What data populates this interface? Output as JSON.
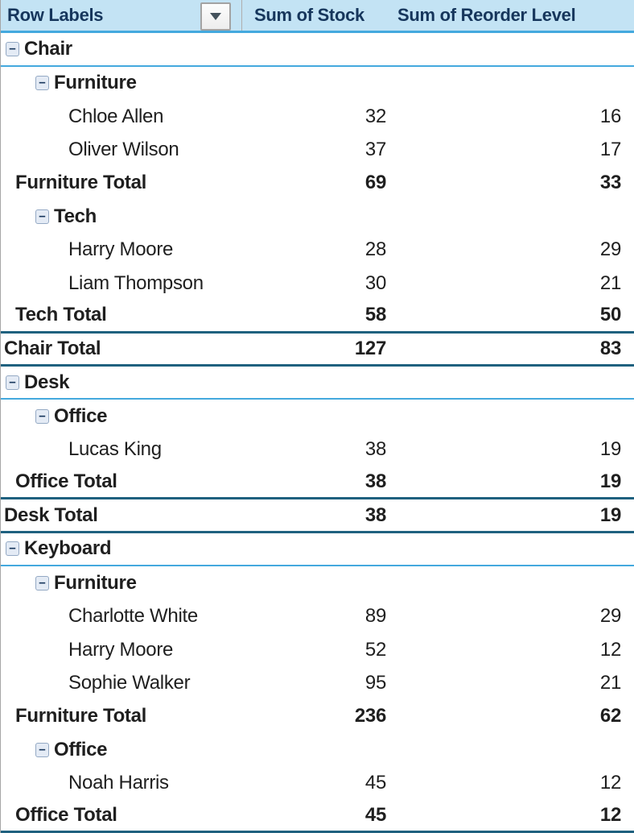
{
  "colors": {
    "header_bg": "#C3E3F4",
    "header_text": "#16365C",
    "body_text": "#1F1F1F",
    "line_sky": "#44A9DE",
    "line_dark": "#1F617F",
    "left_border": "#A6A6A6",
    "expand_box_bg": "#E4EBF5",
    "expand_box_border": "#94A9C4",
    "expand_minus": "#16365C",
    "filter_border": "#A3A3A3",
    "filter_bg": "#FDFDFD",
    "filter_arrow": "#44525C"
  },
  "table": {
    "header": {
      "row_labels": "Row Labels",
      "stock": "Sum of Stock",
      "reorder": "Sum of Reorder Level"
    },
    "icons": {
      "filter": "filter-dropdown-arrow",
      "collapse": "minus-collapse-box"
    },
    "collapse_glyph": "−",
    "rows": [
      {
        "kind": "category",
        "level": 0,
        "label": "Chair",
        "stock": "",
        "reorder": "",
        "expand": true,
        "sep": "sky"
      },
      {
        "kind": "category",
        "level": 1,
        "label": "Furniture",
        "stock": "",
        "reorder": "",
        "expand": true,
        "sep": "none"
      },
      {
        "kind": "item",
        "level": 2,
        "label": "Chloe Allen",
        "stock": "32",
        "reorder": "16",
        "expand": false,
        "sep": "none"
      },
      {
        "kind": "item",
        "level": 2,
        "label": "Oliver Wilson",
        "stock": "37",
        "reorder": "17",
        "expand": false,
        "sep": "none"
      },
      {
        "kind": "subtotal",
        "level": 0,
        "label": "Furniture Total",
        "stock": "69",
        "reorder": "33",
        "expand": false,
        "sep": "none"
      },
      {
        "kind": "category",
        "level": 1,
        "label": "Tech",
        "stock": "",
        "reorder": "",
        "expand": true,
        "sep": "none"
      },
      {
        "kind": "item",
        "level": 2,
        "label": "Harry Moore",
        "stock": "28",
        "reorder": "29",
        "expand": false,
        "sep": "none"
      },
      {
        "kind": "item",
        "level": 2,
        "label": "Liam Thompson",
        "stock": "30",
        "reorder": "21",
        "expand": false,
        "sep": "none"
      },
      {
        "kind": "subtotal",
        "level": 0,
        "label": "Tech Total",
        "stock": "58",
        "reorder": "50",
        "expand": false,
        "sep": "dark"
      },
      {
        "kind": "grandtotal",
        "level": 0,
        "label": "Chair Total",
        "stock": "127",
        "reorder": "83",
        "expand": false,
        "sep": "dark"
      },
      {
        "kind": "category",
        "level": 0,
        "label": "Desk",
        "stock": "",
        "reorder": "",
        "expand": true,
        "sep": "sky"
      },
      {
        "kind": "category",
        "level": 1,
        "label": "Office",
        "stock": "",
        "reorder": "",
        "expand": true,
        "sep": "none"
      },
      {
        "kind": "item",
        "level": 2,
        "label": "Lucas King",
        "stock": "38",
        "reorder": "19",
        "expand": false,
        "sep": "none"
      },
      {
        "kind": "subtotal",
        "level": 0,
        "label": "Office Total",
        "stock": "38",
        "reorder": "19",
        "expand": false,
        "sep": "dark"
      },
      {
        "kind": "grandtotal",
        "level": 0,
        "label": "Desk Total",
        "stock": "38",
        "reorder": "19",
        "expand": false,
        "sep": "dark"
      },
      {
        "kind": "category",
        "level": 0,
        "label": "Keyboard",
        "stock": "",
        "reorder": "",
        "expand": true,
        "sep": "sky"
      },
      {
        "kind": "category",
        "level": 1,
        "label": "Furniture",
        "stock": "",
        "reorder": "",
        "expand": true,
        "sep": "none"
      },
      {
        "kind": "item",
        "level": 2,
        "label": "Charlotte White",
        "stock": "89",
        "reorder": "29",
        "expand": false,
        "sep": "none"
      },
      {
        "kind": "item",
        "level": 2,
        "label": "Harry Moore",
        "stock": "52",
        "reorder": "12",
        "expand": false,
        "sep": "none"
      },
      {
        "kind": "item",
        "level": 2,
        "label": "Sophie Walker",
        "stock": "95",
        "reorder": "21",
        "expand": false,
        "sep": "none"
      },
      {
        "kind": "subtotal",
        "level": 0,
        "label": "Furniture Total",
        "stock": "236",
        "reorder": "62",
        "expand": false,
        "sep": "none"
      },
      {
        "kind": "category",
        "level": 1,
        "label": "Office",
        "stock": "",
        "reorder": "",
        "expand": true,
        "sep": "none"
      },
      {
        "kind": "item",
        "level": 2,
        "label": "Noah Harris",
        "stock": "45",
        "reorder": "12",
        "expand": false,
        "sep": "none"
      },
      {
        "kind": "subtotal",
        "level": 0,
        "label": "Office Total",
        "stock": "45",
        "reorder": "12",
        "expand": false,
        "sep": "dark"
      }
    ]
  }
}
